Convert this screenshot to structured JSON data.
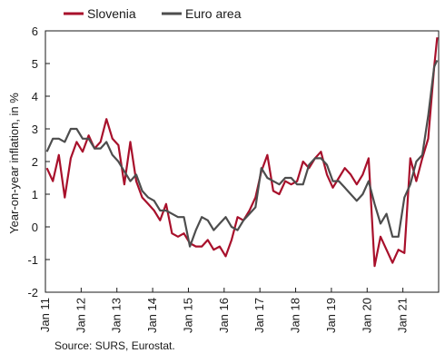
{
  "chart_data": {
    "type": "line",
    "ylabel": "Year-on-year inflation, in %",
    "ylim": [
      -2,
      6
    ],
    "yticks": [
      -2,
      -1,
      0,
      1,
      2,
      3,
      4,
      5,
      6
    ],
    "xlim": [
      "2011-01",
      "2021-12"
    ],
    "xticks": [
      "Jan 11",
      "Jan 12",
      "Jan 13",
      "Jan 14",
      "Jan 15",
      "Jan 16",
      "Jan 17",
      "Jan 18",
      "Jan 19",
      "Jan 20",
      "Jan 21"
    ],
    "grid": false,
    "legend_position": "top-left",
    "series": [
      {
        "name": "Slovenia",
        "color": "#a8102b",
        "x": [
          "2011-01",
          "2011-03",
          "2011-05",
          "2011-07",
          "2011-09",
          "2011-11",
          "2012-01",
          "2012-03",
          "2012-05",
          "2012-07",
          "2012-09",
          "2012-11",
          "2013-01",
          "2013-03",
          "2013-05",
          "2013-07",
          "2013-09",
          "2013-11",
          "2014-01",
          "2014-03",
          "2014-05",
          "2014-07",
          "2014-09",
          "2014-11",
          "2015-01",
          "2015-03",
          "2015-05",
          "2015-07",
          "2015-09",
          "2015-11",
          "2016-01",
          "2016-03",
          "2016-05",
          "2016-07",
          "2016-09",
          "2016-11",
          "2017-01",
          "2017-03",
          "2017-05",
          "2017-07",
          "2017-09",
          "2017-11",
          "2018-01",
          "2018-03",
          "2018-05",
          "2018-07",
          "2018-09",
          "2018-11",
          "2019-01",
          "2019-03",
          "2019-05",
          "2019-07",
          "2019-09",
          "2019-11",
          "2020-01",
          "2020-03",
          "2020-05",
          "2020-07",
          "2020-09",
          "2020-11",
          "2021-01",
          "2021-03",
          "2021-05",
          "2021-07",
          "2021-09",
          "2021-11",
          "2021-12"
        ],
        "values": [
          1.8,
          1.4,
          2.2,
          0.9,
          2.1,
          2.6,
          2.3,
          2.8,
          2.4,
          2.6,
          3.3,
          2.7,
          2.5,
          1.3,
          2.6,
          1.4,
          0.9,
          0.7,
          0.5,
          0.2,
          0.7,
          -0.2,
          -0.3,
          -0.2,
          -0.5,
          -0.6,
          -0.6,
          -0.4,
          -0.7,
          -0.6,
          -0.9,
          -0.4,
          0.3,
          0.2,
          0.5,
          0.9,
          1.7,
          2.2,
          1.1,
          1.0,
          1.4,
          1.3,
          1.4,
          2.0,
          1.8,
          2.1,
          2.3,
          1.6,
          1.2,
          1.5,
          1.8,
          1.6,
          1.3,
          1.6,
          2.1,
          -1.2,
          -0.3,
          -0.7,
          -1.1,
          -0.7,
          -0.8,
          2.1,
          1.4,
          2.1,
          2.7,
          4.9,
          5.8
        ]
      },
      {
        "name": "Euro area",
        "color": "#4d4d4d",
        "x": [
          "2011-01",
          "2011-03",
          "2011-05",
          "2011-07",
          "2011-09",
          "2011-11",
          "2012-01",
          "2012-03",
          "2012-05",
          "2012-07",
          "2012-09",
          "2012-11",
          "2013-01",
          "2013-03",
          "2013-05",
          "2013-07",
          "2013-09",
          "2013-11",
          "2014-01",
          "2014-03",
          "2014-05",
          "2014-07",
          "2014-09",
          "2014-11",
          "2015-01",
          "2015-03",
          "2015-05",
          "2015-07",
          "2015-09",
          "2015-11",
          "2016-01",
          "2016-03",
          "2016-05",
          "2016-07",
          "2016-09",
          "2016-11",
          "2017-01",
          "2017-03",
          "2017-05",
          "2017-07",
          "2017-09",
          "2017-11",
          "2018-01",
          "2018-03",
          "2018-05",
          "2018-07",
          "2018-09",
          "2018-11",
          "2019-01",
          "2019-03",
          "2019-05",
          "2019-07",
          "2019-09",
          "2019-11",
          "2020-01",
          "2020-03",
          "2020-05",
          "2020-07",
          "2020-09",
          "2020-11",
          "2021-01",
          "2021-03",
          "2021-05",
          "2021-07",
          "2021-09",
          "2021-11",
          "2021-12"
        ],
        "values": [
          2.3,
          2.7,
          2.7,
          2.6,
          3.0,
          3.0,
          2.7,
          2.7,
          2.4,
          2.4,
          2.6,
          2.2,
          2.0,
          1.7,
          1.4,
          1.6,
          1.1,
          0.9,
          0.8,
          0.5,
          0.5,
          0.4,
          0.3,
          0.3,
          -0.6,
          -0.1,
          0.3,
          0.2,
          -0.1,
          0.1,
          0.3,
          0.0,
          -0.1,
          0.2,
          0.4,
          0.6,
          1.8,
          1.5,
          1.4,
          1.3,
          1.5,
          1.5,
          1.3,
          1.3,
          1.9,
          2.1,
          2.1,
          1.9,
          1.4,
          1.4,
          1.2,
          1.0,
          0.8,
          1.0,
          1.4,
          0.7,
          0.1,
          0.4,
          -0.3,
          -0.3,
          0.9,
          1.3,
          2.0,
          2.2,
          3.4,
          4.9,
          5.1
        ]
      }
    ]
  },
  "source_text": "Source: SURS, Eurostat."
}
